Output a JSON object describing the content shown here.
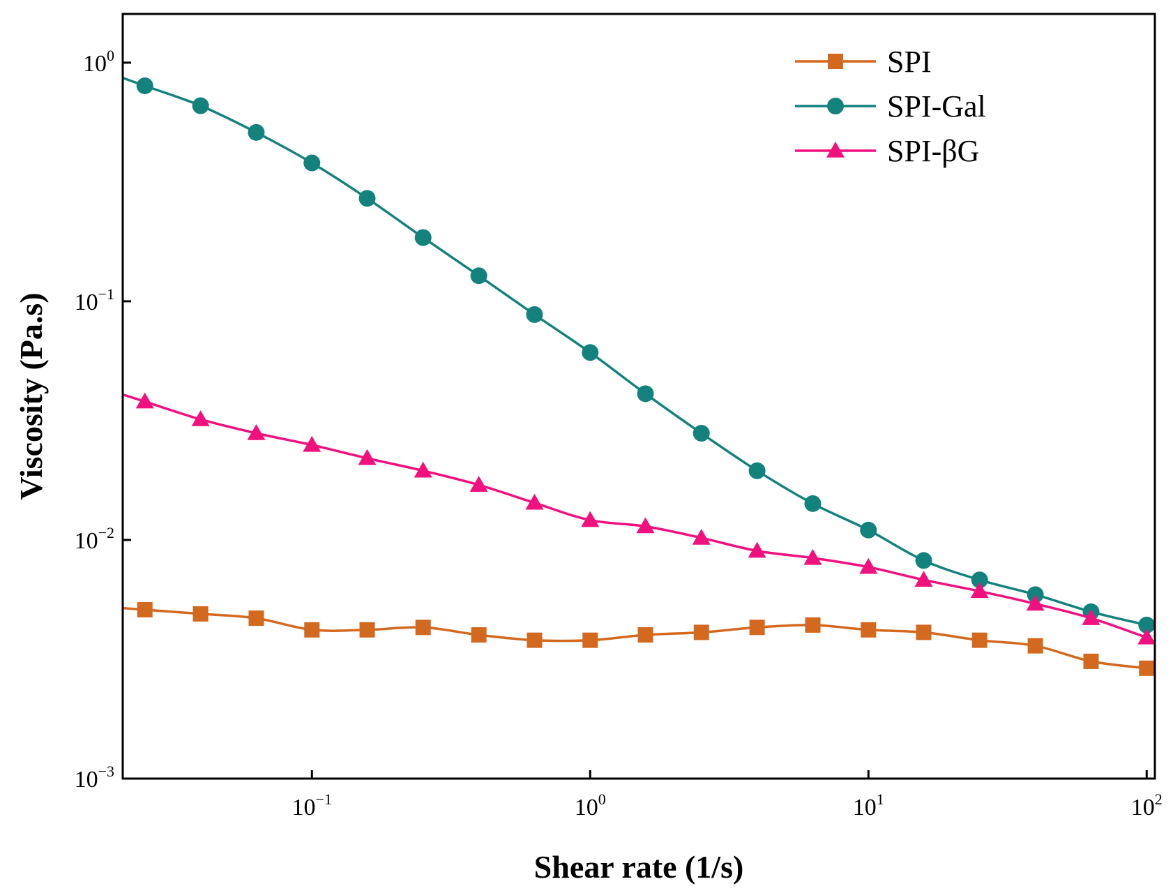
{
  "chart_data": {
    "type": "line",
    "title": "",
    "xlabel": "Shear rate (1/s)",
    "ylabel": "Viscosity (Pa.s)",
    "xscale": "log",
    "yscale": "log",
    "xlim": [
      0.0209,
      107
    ],
    "ylim": [
      0.001,
      1.6
    ],
    "legend_position": "top-right",
    "x_ticks": [
      {
        "base": "10",
        "exp": "−1",
        "value": 0.1
      },
      {
        "base": "10",
        "exp": "0",
        "value": 1
      },
      {
        "base": "10",
        "exp": "1",
        "value": 10
      },
      {
        "base": "10",
        "exp": "2",
        "value": 100
      }
    ],
    "y_ticks": [
      {
        "base": "10",
        "exp": "−3",
        "value": 0.001
      },
      {
        "base": "10",
        "exp": "−2",
        "value": 0.01
      },
      {
        "base": "10",
        "exp": "−1",
        "value": 0.1
      },
      {
        "base": "10",
        "exp": "0",
        "value": 1
      }
    ],
    "x": [
      0.0251,
      0.0398,
      0.0631,
      0.1,
      0.158,
      0.251,
      0.398,
      0.631,
      1.0,
      1.58,
      2.51,
      3.98,
      6.31,
      10.0,
      15.8,
      25.1,
      39.8,
      63.1,
      100.0
    ],
    "series": [
      {
        "name": "SPI",
        "color": "#D2691E",
        "marker": "square",
        "values": [
          0.0051,
          0.0049,
          0.0047,
          0.0042,
          0.0042,
          0.0043,
          0.004,
          0.0038,
          0.0038,
          0.004,
          0.0041,
          0.0043,
          0.0044,
          0.0042,
          0.0041,
          0.0038,
          0.0036,
          0.0031,
          0.0029
        ]
      },
      {
        "name": "SPI-Gal",
        "color": "#13827D",
        "marker": "circle",
        "values": [
          0.8,
          0.66,
          0.51,
          0.38,
          0.27,
          0.185,
          0.128,
          0.088,
          0.061,
          0.041,
          0.028,
          0.0195,
          0.0142,
          0.011,
          0.0082,
          0.0068,
          0.0059,
          0.005,
          0.0044
        ]
      },
      {
        "name": "SPI-βG",
        "color": "#F0117F",
        "marker": "triangle",
        "values": [
          0.038,
          0.032,
          0.028,
          0.025,
          0.022,
          0.0195,
          0.017,
          0.0143,
          0.0121,
          0.0114,
          0.0102,
          0.009,
          0.0084,
          0.0077,
          0.0068,
          0.0061,
          0.0054,
          0.0047,
          0.0039
        ]
      }
    ]
  }
}
